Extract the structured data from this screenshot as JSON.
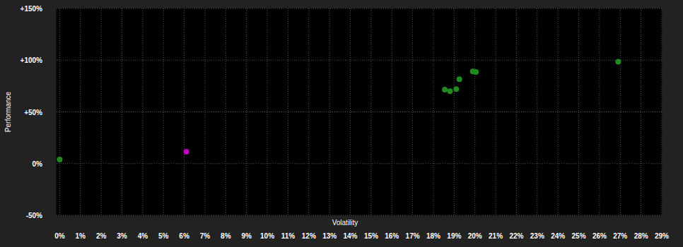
{
  "chart_data": {
    "type": "scatter",
    "x_label": "Volatility",
    "y_label": "Performance",
    "x": [
      0,
      6.1,
      18.55,
      18.8,
      19.1,
      19.25,
      19.9,
      20.05,
      26.9
    ],
    "values": [
      4,
      11.5,
      71.5,
      70,
      72,
      81.5,
      89,
      88.5,
      98.5
    ],
    "colors": [
      "#1e8c1e",
      "#c000c0",
      "#1e8c1e",
      "#1e8c1e",
      "#1e8c1e",
      "#1e8c1e",
      "#1e8c1e",
      "#1e8c1e",
      "#1e8c1e"
    ],
    "xlim": [
      -0.15,
      29
    ],
    "xticks": [
      {
        "value": 0,
        "label": "0%"
      },
      {
        "value": 1,
        "label": "1%"
      },
      {
        "value": 2,
        "label": "2%"
      },
      {
        "value": 3,
        "label": "3%"
      },
      {
        "value": 4,
        "label": "4%"
      },
      {
        "value": 5,
        "label": "5%"
      },
      {
        "value": 6,
        "label": "6%"
      },
      {
        "value": 7,
        "label": "7%"
      },
      {
        "value": 8,
        "label": "8%"
      },
      {
        "value": 9,
        "label": "9%"
      },
      {
        "value": 10,
        "label": "10%"
      },
      {
        "value": 11,
        "label": "11%"
      },
      {
        "value": 12,
        "label": "12%"
      },
      {
        "value": 13,
        "label": "13%"
      },
      {
        "value": 14,
        "label": "14%"
      },
      {
        "value": 15,
        "label": "15%"
      },
      {
        "value": 16,
        "label": "16%"
      },
      {
        "value": 17,
        "label": "17%"
      },
      {
        "value": 18,
        "label": "18%"
      },
      {
        "value": 19,
        "label": "19%"
      },
      {
        "value": 20,
        "label": "20%"
      },
      {
        "value": 21,
        "label": "21%"
      },
      {
        "value": 22,
        "label": "22%"
      },
      {
        "value": 23,
        "label": "23%"
      },
      {
        "value": 24,
        "label": "24%"
      },
      {
        "value": 25,
        "label": "25%"
      },
      {
        "value": 26,
        "label": "26%"
      },
      {
        "value": 27,
        "label": "27%"
      },
      {
        "value": 28,
        "label": "28%"
      },
      {
        "value": 29,
        "label": "29%"
      }
    ],
    "ylim": [
      -50,
      150
    ],
    "yticks": [
      {
        "value": -50,
        "label": "-50%"
      },
      {
        "value": 0,
        "label": "0%"
      },
      {
        "value": 50,
        "label": "+50%"
      },
      {
        "value": 100,
        "label": "+100%"
      },
      {
        "value": 150,
        "label": "+150%"
      }
    ],
    "grid": true
  }
}
